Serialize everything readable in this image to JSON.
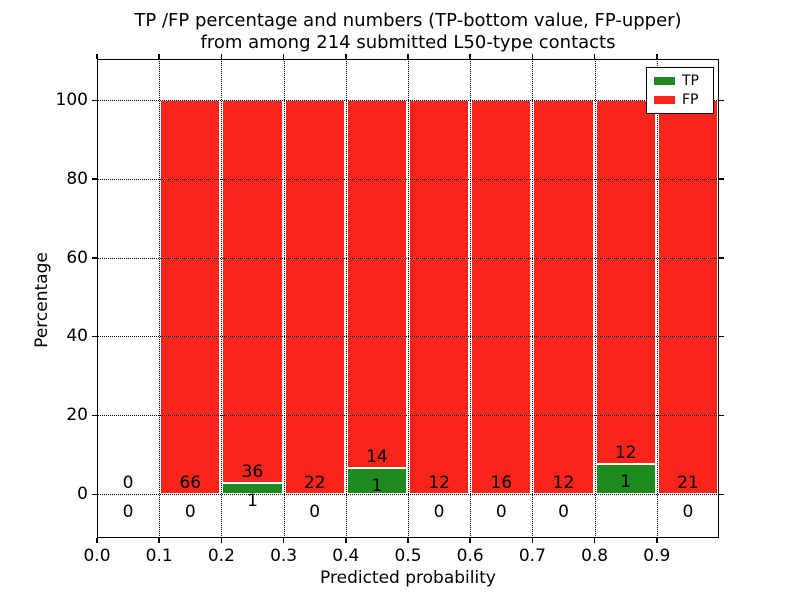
{
  "chart_data": {
    "type": "bar",
    "stacked": true,
    "title_line1": "TP /FP percentage and numbers (TP-bottom value, FP-upper)",
    "title_line2": "from among 214 submitted L50-type contacts",
    "xlabel": "Predicted probability",
    "ylabel": "Percentage",
    "x_tick_labels": [
      "0.0",
      "0.1",
      "0.2",
      "0.3",
      "0.4",
      "0.5",
      "0.6",
      "0.7",
      "0.8",
      "0.9"
    ],
    "x_tick_values": [
      0.0,
      0.1,
      0.2,
      0.3,
      0.4,
      0.5,
      0.6,
      0.7,
      0.8,
      0.9
    ],
    "y_tick_values": [
      0,
      20,
      40,
      60,
      80,
      100
    ],
    "xlim": [
      0.0,
      1.0
    ],
    "ylim": [
      -11.7,
      110.2
    ],
    "grid": "dotted, drawn above bars",
    "legend_position": "upper right",
    "legend": [
      {
        "label": "TP",
        "color": "#1f8b1f"
      },
      {
        "label": "FP",
        "color": "#fa251a"
      }
    ],
    "colors": {
      "tp": "#1f8b1f",
      "fp": "#fa251a",
      "bar_edge": "#ffffff"
    },
    "bins": [
      {
        "range": [
          0.0,
          0.1
        ],
        "tp_count": 0,
        "fp_count": 0,
        "tp_pct": 0,
        "fp_pct": 0,
        "has_bar": false
      },
      {
        "range": [
          0.1,
          0.2
        ],
        "tp_count": 0,
        "fp_count": 66,
        "tp_pct": 0,
        "fp_pct": 100,
        "has_bar": true
      },
      {
        "range": [
          0.2,
          0.3
        ],
        "tp_count": 1,
        "fp_count": 36,
        "tp_pct": 2.7,
        "fp_pct": 97.3,
        "has_bar": true
      },
      {
        "range": [
          0.3,
          0.4
        ],
        "tp_count": 0,
        "fp_count": 22,
        "tp_pct": 0,
        "fp_pct": 100,
        "has_bar": true
      },
      {
        "range": [
          0.4,
          0.5
        ],
        "tp_count": 1,
        "fp_count": 14,
        "tp_pct": 6.67,
        "fp_pct": 93.33,
        "has_bar": true
      },
      {
        "range": [
          0.5,
          0.6
        ],
        "tp_count": 0,
        "fp_count": 12,
        "tp_pct": 0,
        "fp_pct": 100,
        "has_bar": true
      },
      {
        "range": [
          0.6,
          0.7
        ],
        "tp_count": 0,
        "fp_count": 16,
        "tp_pct": 0,
        "fp_pct": 100,
        "has_bar": true
      },
      {
        "range": [
          0.7,
          0.8
        ],
        "tp_count": 0,
        "fp_count": 12,
        "tp_pct": 0,
        "fp_pct": 100,
        "has_bar": true
      },
      {
        "range": [
          0.8,
          0.9
        ],
        "tp_count": 1,
        "fp_count": 12,
        "tp_pct": 7.69,
        "fp_pct": 92.31,
        "has_bar": true
      },
      {
        "range": [
          0.9,
          1.0
        ],
        "tp_count": 0,
        "fp_count": 21,
        "tp_pct": 0,
        "fp_pct": 100,
        "has_bar": true
      }
    ]
  }
}
